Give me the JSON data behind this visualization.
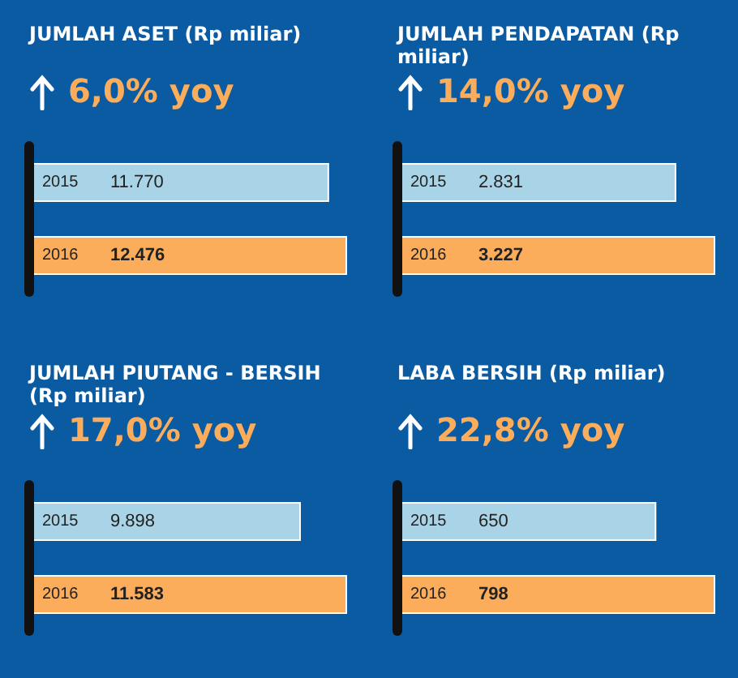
{
  "chart_data": [
    {
      "type": "bar",
      "orientation": "horizontal",
      "title": "JUMLAH ASET (Rp miliar)",
      "subtitle": "6,0% yoy",
      "categories": [
        "2015",
        "2016"
      ],
      "values": [
        11770,
        12476
      ],
      "colors": [
        "#a9d3e6",
        "#fbad5c"
      ],
      "value_labels": [
        "11.770",
        "12.476"
      ]
    },
    {
      "type": "bar",
      "orientation": "horizontal",
      "title": "JUMLAH PENDAPATAN (Rp miliar)",
      "subtitle": "14,0% yoy",
      "categories": [
        "2015",
        "2016"
      ],
      "values": [
        2831,
        3227
      ],
      "colors": [
        "#a9d3e6",
        "#fbad5c"
      ],
      "value_labels": [
        "2.831",
        "3.227"
      ]
    },
    {
      "type": "bar",
      "orientation": "horizontal",
      "title": "JUMLAH PIUTANG - BERSIH (Rp miliar)",
      "subtitle": "17,0% yoy",
      "categories": [
        "2015",
        "2016"
      ],
      "values": [
        9898,
        11583
      ],
      "colors": [
        "#a9d3e6",
        "#fbad5c"
      ],
      "value_labels": [
        "9.898",
        "11.583"
      ]
    },
    {
      "type": "bar",
      "orientation": "horizontal",
      "title": "LABA BERSIH (Rp miliar)",
      "subtitle": "22,8% yoy",
      "categories": [
        "2015",
        "2016"
      ],
      "values": [
        650,
        798
      ],
      "colors": [
        "#a9d3e6",
        "#fbad5c"
      ],
      "value_labels": [
        "650",
        "798"
      ]
    }
  ]
}
